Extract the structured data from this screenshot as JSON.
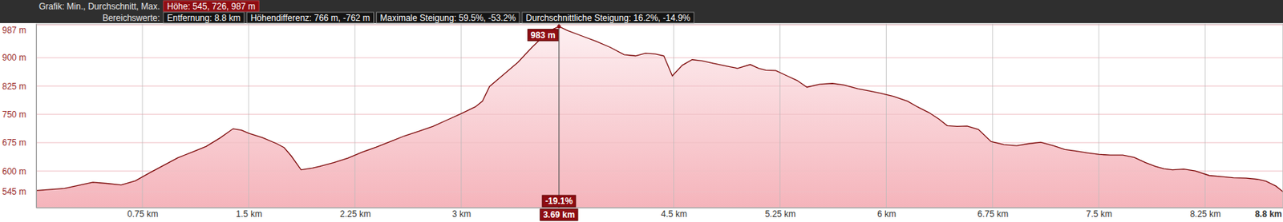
{
  "chart_data": {
    "type": "area",
    "header": [
      [
        "Grafik: Min., Durchschnitt, Max.",
        "Höhe: 545, 726, 987 m"
      ],
      [
        "Bereichswerte:",
        "Entfernung: 8.8 km",
        "Höhendifferenz: 766 m, -762 m",
        "Maximale Steigung: 59.5%, -53.2%",
        "Durchschnittliche Steigung: 16.2%, -14.9%"
      ]
    ],
    "x": [
      0,
      0.1,
      0.2,
      0.3,
      0.4,
      0.5,
      0.6,
      0.7,
      0.8,
      0.9,
      1.0,
      1.1,
      1.2,
      1.3,
      1.39,
      1.45,
      1.5,
      1.6,
      1.7,
      1.75,
      1.8,
      1.87,
      1.95,
      2.0,
      2.1,
      2.2,
      2.3,
      2.4,
      2.5,
      2.6,
      2.7,
      2.8,
      2.9,
      3.0,
      3.1,
      3.15,
      3.2,
      3.3,
      3.4,
      3.5,
      3.55,
      3.6,
      3.65,
      3.69,
      3.75,
      3.85,
      3.95,
      4.05,
      4.15,
      4.23,
      4.3,
      4.37,
      4.43,
      4.49,
      4.56,
      4.63,
      4.7,
      4.78,
      4.87,
      4.95,
      5.04,
      5.1,
      5.15,
      5.22,
      5.3,
      5.37,
      5.44,
      5.53,
      5.62,
      5.7,
      5.8,
      5.88,
      5.96,
      6.05,
      6.15,
      6.22,
      6.3,
      6.37,
      6.43,
      6.5,
      6.57,
      6.65,
      6.74,
      6.83,
      6.92,
      7.0,
      7.09,
      7.18,
      7.26,
      7.35,
      7.42,
      7.5,
      7.58,
      7.67,
      7.75,
      7.83,
      7.9,
      7.96,
      8.02,
      8.1,
      8.18,
      8.28,
      8.37,
      8.45,
      8.54,
      8.62,
      8.68,
      8.75,
      8.8
    ],
    "values": [
      548,
      551,
      554,
      562,
      570,
      567,
      563,
      574,
      595,
      615,
      635,
      650,
      665,
      688,
      712,
      708,
      700,
      688,
      672,
      662,
      640,
      603,
      608,
      612,
      622,
      634,
      650,
      663,
      678,
      693,
      705,
      718,
      735,
      752,
      770,
      785,
      824,
      856,
      888,
      928,
      946,
      963,
      976,
      983,
      972,
      958,
      944,
      928,
      908,
      905,
      912,
      910,
      905,
      852,
      880,
      895,
      892,
      885,
      878,
      872,
      882,
      872,
      867,
      866,
      852,
      840,
      822,
      830,
      832,
      828,
      818,
      812,
      806,
      798,
      785,
      770,
      755,
      738,
      720,
      718,
      719,
      710,
      678,
      670,
      667,
      672,
      676,
      667,
      657,
      652,
      648,
      644,
      642,
      642,
      636,
      622,
      612,
      606,
      603,
      605,
      600,
      588,
      585,
      582,
      581,
      578,
      573,
      560,
      545
    ],
    "color": "#7d0a0a",
    "xlim": [
      0,
      8.8
    ],
    "ylim": [
      503,
      990
    ],
    "xticks": [
      {
        "value": 0.75,
        "label": "0.75 km"
      },
      {
        "value": 1.5,
        "label": "1.5 km"
      },
      {
        "value": 2.25,
        "label": "2.25 km"
      },
      {
        "value": 3,
        "label": "3 km"
      },
      {
        "value": 4.5,
        "label": "4.5 km"
      },
      {
        "value": 5.25,
        "label": "5.25 km"
      },
      {
        "value": 6,
        "label": "6 km"
      },
      {
        "value": 6.75,
        "label": "6.75 km"
      },
      {
        "value": 7.5,
        "label": "7.5 km"
      },
      {
        "value": 8.25,
        "label": "8.25 km"
      },
      {
        "value": 8.8,
        "label": "8.8 km"
      }
    ],
    "yticks": [
      {
        "value": 545,
        "label": "545 m"
      },
      {
        "value": 600,
        "label": "600 m"
      },
      {
        "value": 675,
        "label": "675 m"
      },
      {
        "value": 750,
        "label": "750 m"
      },
      {
        "value": 825,
        "label": "825 m"
      },
      {
        "value": 900,
        "label": "900 m"
      },
      {
        "value": 987,
        "label": "987 m"
      }
    ],
    "grid": true,
    "annotations": [
      {
        "x": 3.69,
        "y": 983,
        "text": "983 m",
        "x_text": "3.69 km",
        "grade_text": "-19.1%"
      }
    ]
  }
}
